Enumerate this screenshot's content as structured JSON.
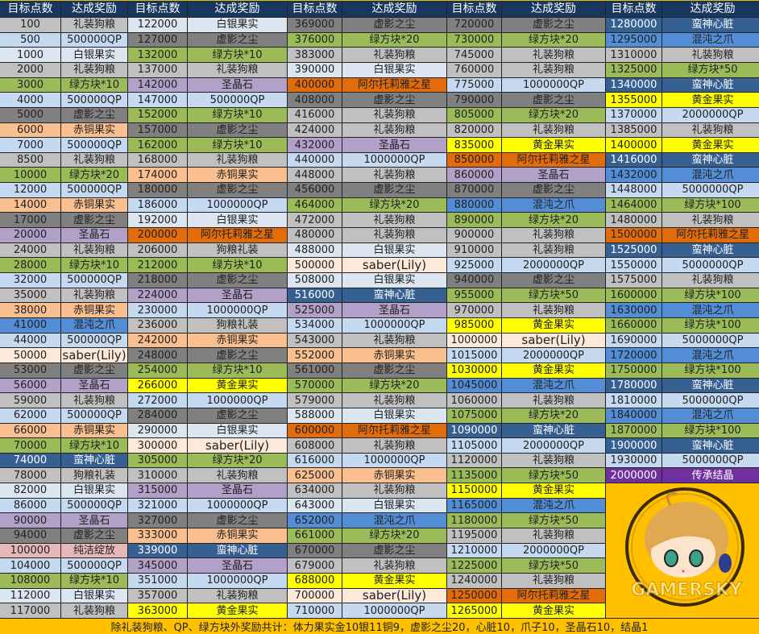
{
  "headers": {
    "points": "目标点数",
    "reward": "达成奖励"
  },
  "colors": {
    "header": "#17375e",
    "footer": "#ffc000",
    "礼装狗粮": "#c0c0c0",
    "狗粮礼装": "#c0c0c0",
    "500000QP": "#c5d9f1",
    "1000000QP": "#c5d9f1",
    "2000000QP": "#c5d9f1",
    "5000000QP": "#c5d9f1",
    "白银果实": "#dce6f1",
    "绿方块": "#9bbb59",
    "虚影之尘": "#808080",
    "赤铜果实": "#fabf8f",
    "圣晶石": "#b1a0c7",
    "混沌之爪": "#538dd5",
    "蛮神心脏": "#366092",
    "阿尔托莉雅之星": "#e26b0a",
    "saber(Lily)": "#fde9d9",
    "黄金果实": "#ffff00",
    "纯洁绽放": "#e6b8b7",
    "传承结晶": "#7030a0"
  },
  "columns": [
    [
      [
        "100",
        "礼装狗粮"
      ],
      [
        "500",
        "500000QP"
      ],
      [
        "1000",
        "白银果实"
      ],
      [
        "2000",
        "礼装狗粮"
      ],
      [
        "3000",
        "绿方块*10"
      ],
      [
        "4000",
        "500000QP"
      ],
      [
        "5000",
        "虚影之尘"
      ],
      [
        "6000",
        "赤铜果实"
      ],
      [
        "7000",
        "500000QP"
      ],
      [
        "8500",
        "礼装狗粮"
      ],
      [
        "10000",
        "绿方块*20"
      ],
      [
        "12000",
        "500000QP"
      ],
      [
        "14000",
        "赤铜果实"
      ],
      [
        "17000",
        "虚影之尘"
      ],
      [
        "20000",
        "圣晶石"
      ],
      [
        "24000",
        "礼装狗粮"
      ],
      [
        "28000",
        "绿方块*10"
      ],
      [
        "32000",
        "500000QP"
      ],
      [
        "35000",
        "礼装狗粮"
      ],
      [
        "38000",
        "赤铜果实"
      ],
      [
        "41000",
        "混沌之爪"
      ],
      [
        "44000",
        "500000QP"
      ],
      [
        "50000",
        "saber(Lily)"
      ],
      [
        "53000",
        "虚影之尘"
      ],
      [
        "56000",
        "圣晶石"
      ],
      [
        "59000",
        "礼装狗粮"
      ],
      [
        "62000",
        "500000QP"
      ],
      [
        "66000",
        "赤铜果实"
      ],
      [
        "70000",
        "绿方块*10"
      ],
      [
        "74000",
        "蛮神心脏"
      ],
      [
        "78000",
        "狗粮礼装"
      ],
      [
        "82000",
        "白银果实"
      ],
      [
        "86000",
        "500000QP"
      ],
      [
        "90000",
        "圣晶石"
      ],
      [
        "94000",
        "虚影之尘"
      ],
      [
        "100000",
        "纯洁绽放"
      ],
      [
        "104000",
        "500000QP"
      ],
      [
        "108000",
        "绿方块*10"
      ],
      [
        "112000",
        "白银果实"
      ],
      [
        "117000",
        "礼装狗粮"
      ]
    ],
    [
      [
        "122000",
        "白银果实"
      ],
      [
        "127000",
        "虚影之尘"
      ],
      [
        "132000",
        "绿方块*10"
      ],
      [
        "137000",
        "礼装狗粮"
      ],
      [
        "142000",
        "圣晶石"
      ],
      [
        "147000",
        "500000QP"
      ],
      [
        "152000",
        "绿方块*10"
      ],
      [
        "157000",
        "虚影之尘"
      ],
      [
        "162000",
        "绿方块*10"
      ],
      [
        "168000",
        "礼装狗粮"
      ],
      [
        "174000",
        "赤铜果实"
      ],
      [
        "180000",
        "虚影之尘"
      ],
      [
        "186000",
        "1000000QP"
      ],
      [
        "192000",
        "白银果实"
      ],
      [
        "200000",
        "阿尔托莉雅之星"
      ],
      [
        "206000",
        "狗粮礼装"
      ],
      [
        "212000",
        "绿方块*10"
      ],
      [
        "218000",
        "虚影之尘"
      ],
      [
        "224000",
        "圣晶石"
      ],
      [
        "230000",
        "1000000QP"
      ],
      [
        "236000",
        "狗粮礼装"
      ],
      [
        "242000",
        "赤铜果实"
      ],
      [
        "248000",
        "虚影之尘"
      ],
      [
        "254000",
        "绿方块*10"
      ],
      [
        "266000",
        "黄金果实"
      ],
      [
        "272000",
        "1000000QP"
      ],
      [
        "284000",
        "虚影之尘"
      ],
      [
        "290000",
        "白银果实"
      ],
      [
        "300000",
        "saber(Lily)"
      ],
      [
        "305000",
        "绿方块*20"
      ],
      [
        "310000",
        "礼装狗粮"
      ],
      [
        "315000",
        "圣晶石"
      ],
      [
        "321000",
        "1000000QP"
      ],
      [
        "327000",
        "虚影之尘"
      ],
      [
        "333000",
        "赤铜果实"
      ],
      [
        "339000",
        "蛮神心脏"
      ],
      [
        "345000",
        "圣晶石"
      ],
      [
        "351000",
        "1000000QP"
      ],
      [
        "357000",
        "礼装狗粮"
      ],
      [
        "363000",
        "黄金果实"
      ]
    ],
    [
      [
        "369000",
        "虚影之尘"
      ],
      [
        "376000",
        "绿方块*20"
      ],
      [
        "383000",
        "礼装狗粮"
      ],
      [
        "390000",
        "白银果实"
      ],
      [
        "400000",
        "阿尔托莉雅之星"
      ],
      [
        "408000",
        "虚影之尘"
      ],
      [
        "416000",
        "礼装狗粮"
      ],
      [
        "424000",
        "礼装狗粮"
      ],
      [
        "432000",
        "圣晶石"
      ],
      [
        "440000",
        "1000000QP"
      ],
      [
        "448000",
        "礼装狗粮"
      ],
      [
        "456000",
        "虚影之尘"
      ],
      [
        "464000",
        "绿方块*20"
      ],
      [
        "472000",
        "礼装狗粮"
      ],
      [
        "480000",
        "礼装狗粮"
      ],
      [
        "488000",
        "白银果实"
      ],
      [
        "500000",
        "saber(Lily)"
      ],
      [
        "508000",
        "白银果实"
      ],
      [
        "516000",
        "蛮神心脏"
      ],
      [
        "525000",
        "圣晶石"
      ],
      [
        "534000",
        "1000000QP"
      ],
      [
        "543000",
        "礼装狗粮"
      ],
      [
        "552000",
        "赤铜果实"
      ],
      [
        "561000",
        "虚影之尘"
      ],
      [
        "570000",
        "绿方块*20"
      ],
      [
        "579000",
        "礼装狗粮"
      ],
      [
        "588000",
        "白银果实"
      ],
      [
        "600000",
        "阿尔托莉雅之星"
      ],
      [
        "608000",
        "礼装狗粮"
      ],
      [
        "616000",
        "1000000QP"
      ],
      [
        "625000",
        "赤铜果实"
      ],
      [
        "634000",
        "礼装狗粮"
      ],
      [
        "643000",
        "白银果实"
      ],
      [
        "652000",
        "混沌之爪"
      ],
      [
        "661000",
        "绿方块*20"
      ],
      [
        "670000",
        "虚影之尘"
      ],
      [
        "679000",
        "礼装狗粮"
      ],
      [
        "688000",
        "黄金果实"
      ],
      [
        "700000",
        "saber(Lily)"
      ],
      [
        "710000",
        "1000000QP"
      ]
    ],
    [
      [
        "720000",
        "虚影之尘"
      ],
      [
        "730000",
        "绿方块*20"
      ],
      [
        "745000",
        "礼装狗粮"
      ],
      [
        "760000",
        "礼装狗粮"
      ],
      [
        "775000",
        "1000000QP"
      ],
      [
        "790000",
        "虚影之尘"
      ],
      [
        "805000",
        "绿方块*20"
      ],
      [
        "820000",
        "礼装狗粮"
      ],
      [
        "835000",
        "黄金果实"
      ],
      [
        "850000",
        "阿尔托莉雅之星"
      ],
      [
        "860000",
        "圣晶石"
      ],
      [
        "870000",
        "虚影之尘"
      ],
      [
        "880000",
        "混沌之爪"
      ],
      [
        "890000",
        "绿方块*20"
      ],
      [
        "900000",
        "礼装狗粮"
      ],
      [
        "910000",
        "礼装狗粮"
      ],
      [
        "925000",
        "2000000QP"
      ],
      [
        "940000",
        "虚影之尘"
      ],
      [
        "955000",
        "绿方块*50"
      ],
      [
        "970000",
        "礼装狗粮"
      ],
      [
        "985000",
        "黄金果实"
      ],
      [
        "1000000",
        "saber(Lily)"
      ],
      [
        "1015000",
        "2000000QP"
      ],
      [
        "1030000",
        "黄金果实"
      ],
      [
        "1045000",
        "混沌之爪"
      ],
      [
        "1060000",
        "礼装狗粮"
      ],
      [
        "1075000",
        "绿方块*20"
      ],
      [
        "1090000",
        "蛮神心脏"
      ],
      [
        "1105000",
        "2000000QP"
      ],
      [
        "1120000",
        "礼装狗粮"
      ],
      [
        "1135000",
        "绿方块*50"
      ],
      [
        "1150000",
        "黄金果实"
      ],
      [
        "1165000",
        "混沌之爪"
      ],
      [
        "1180000",
        "绿方块*50"
      ],
      [
        "1195000",
        "礼装狗粮"
      ],
      [
        "1210000",
        "2000000QP"
      ],
      [
        "1225000",
        "绿方块*50"
      ],
      [
        "1240000",
        "礼装狗粮"
      ],
      [
        "1250000",
        "阿尔托莉雅之星"
      ],
      [
        "1265000",
        "黄金果实"
      ]
    ],
    [
      [
        "1280000",
        "蛮神心脏"
      ],
      [
        "1295000",
        "混沌之爪"
      ],
      [
        "1310000",
        "礼装狗粮"
      ],
      [
        "1325000",
        "绿方块*50"
      ],
      [
        "1340000",
        "蛮神心脏"
      ],
      [
        "1355000",
        "黄金果实"
      ],
      [
        "1370000",
        "2000000QP"
      ],
      [
        "1385000",
        "礼装狗粮"
      ],
      [
        "1400000",
        "黄金果实"
      ],
      [
        "1416000",
        "蛮神心脏"
      ],
      [
        "1432000",
        "混沌之爪"
      ],
      [
        "1448000",
        "5000000QP"
      ],
      [
        "1464000",
        "绿方块*100"
      ],
      [
        "1480000",
        "礼装狗粮"
      ],
      [
        "1500000",
        "阿尔托莉雅之星"
      ],
      [
        "1525000",
        "蛮神心脏"
      ],
      [
        "1550000",
        "5000000QP"
      ],
      [
        "1575000",
        "礼装狗粮"
      ],
      [
        "1600000",
        "绿方块*100"
      ],
      [
        "1630000",
        "混沌之爪"
      ],
      [
        "1660000",
        "绿方块*100"
      ],
      [
        "1690000",
        "5000000QP"
      ],
      [
        "1720000",
        "混沌之爪"
      ],
      [
        "1750000",
        "绿方块*100"
      ],
      [
        "1780000",
        "蛮神心脏"
      ],
      [
        "1810000",
        "5000000QP"
      ],
      [
        "1840000",
        "混沌之爪"
      ],
      [
        "1870000",
        "绿方块*100"
      ],
      [
        "1900000",
        "蛮神心脏"
      ],
      [
        "1930000",
        "5000000QP"
      ],
      [
        "2000000",
        "传承结晶"
      ]
    ]
  ],
  "footer": "除礼装狗粮、QP、绿方块外奖励共计：体力果实金10银11铜9，虚影之尘20，心脏10，爪子10，圣晶石10，结晶1",
  "image": {
    "subject": "saber-chibi-portrait",
    "watermark": "gamersky-watermark"
  }
}
